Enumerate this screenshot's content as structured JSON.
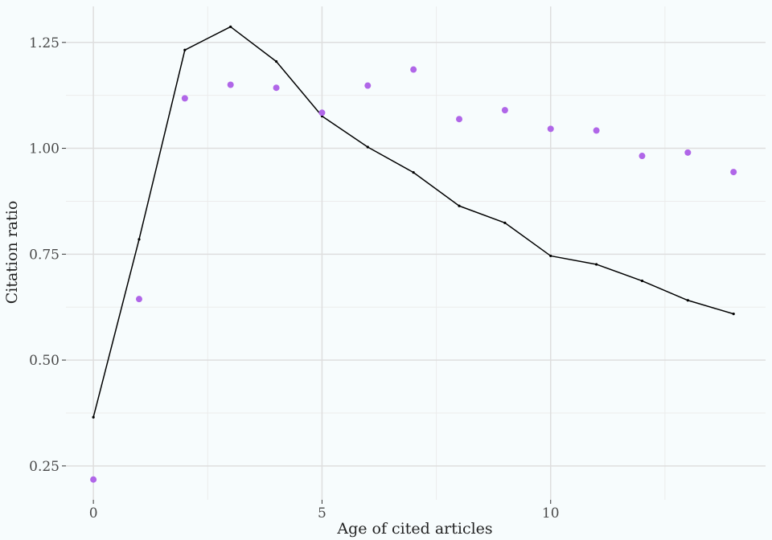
{
  "chart_data": {
    "type": "line",
    "xlabel": "Age of cited articles",
    "ylabel": "Citation ratio",
    "xlim": [
      -0.6,
      14.7
    ],
    "ylim": [
      0.17,
      1.335
    ],
    "x_ticks": [
      0,
      5,
      10
    ],
    "x_tick_labels": [
      "0",
      "5",
      "10"
    ],
    "x_minor_ticks": [
      2.5,
      7.5,
      12.5
    ],
    "y_ticks": [
      0.25,
      0.5,
      0.75,
      1.0,
      1.25
    ],
    "y_tick_labels": [
      "0.25",
      "0.50",
      "0.75",
      "1.00",
      "1.25"
    ],
    "y_minor_ticks": [
      0.375,
      0.625,
      0.875,
      1.125
    ],
    "grid": true,
    "legend": "none",
    "series": [
      {
        "style": "line",
        "color": "#000000",
        "x": [
          0,
          1,
          2,
          3,
          4,
          5,
          6,
          7,
          8,
          9,
          10,
          11,
          12,
          13,
          14
        ],
        "y": [
          0.365,
          0.785,
          1.232,
          1.287,
          1.205,
          1.076,
          1.003,
          0.943,
          0.864,
          0.824,
          0.746,
          0.726,
          0.687,
          0.641,
          0.609
        ]
      },
      {
        "style": "points",
        "color": "#b066e8",
        "x": [
          0,
          1,
          2,
          3,
          4,
          5,
          6,
          7,
          8,
          9,
          10,
          11,
          12,
          13,
          14
        ],
        "y": [
          0.218,
          0.644,
          1.118,
          1.15,
          1.143,
          1.084,
          1.148,
          1.186,
          1.069,
          1.09,
          1.046,
          1.042,
          0.982,
          0.99,
          0.944
        ]
      }
    ]
  }
}
